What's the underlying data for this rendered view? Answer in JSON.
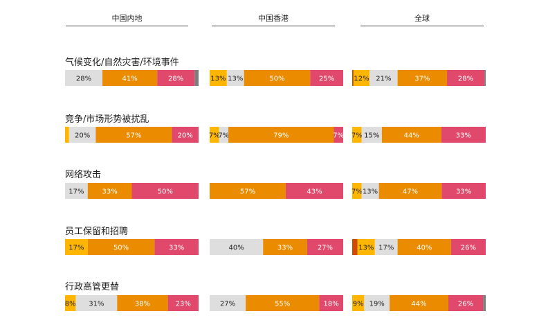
{
  "chart_data": {
    "type": "bar",
    "stacked": true,
    "orientation": "horizontal",
    "panels": [
      "中国内地",
      "中国香港",
      "全球"
    ],
    "colors": {
      "dark_orange": "#d04a02",
      "gold": "#ffb600",
      "light_gray": "#dedede",
      "orange": "#eb8c00",
      "rose": "#e0496b",
      "dark_gray": "#7d7d7d"
    },
    "categories": [
      "气候变化/自然灾害/环境事件",
      "竞争/市场形势被扰乱",
      "网络攻击",
      "员工保留和招聘",
      "行政高管更替"
    ],
    "rows": [
      {
        "label": "气候变化/自然灾害/环境事件",
        "panels": [
          [
            {
              "value": 28,
              "color": "light_gray",
              "label": "28%"
            },
            {
              "value": 41,
              "color": "orange",
              "label": "41%"
            },
            {
              "value": 28,
              "color": "rose",
              "label": "28%"
            },
            {
              "value": 3,
              "color": "dark_gray",
              "label": ""
            }
          ],
          [
            {
              "value": 13,
              "color": "gold",
              "label": "13%"
            },
            {
              "value": 13,
              "color": "light_gray",
              "label": "13%"
            },
            {
              "value": 50,
              "color": "orange",
              "label": "50%"
            },
            {
              "value": 25,
              "color": "rose",
              "label": "25%"
            }
          ],
          [
            {
              "value": 1,
              "color": "dark_orange",
              "label": ""
            },
            {
              "value": 12,
              "color": "gold",
              "label": "12%"
            },
            {
              "value": 21,
              "color": "light_gray",
              "label": "21%"
            },
            {
              "value": 37,
              "color": "orange",
              "label": "37%"
            },
            {
              "value": 28,
              "color": "rose",
              "label": "28%"
            },
            {
              "value": 1,
              "color": "dark_gray",
              "label": ""
            }
          ]
        ]
      },
      {
        "label": "竞争/市场形势被扰乱",
        "panels": [
          [
            {
              "value": 3,
              "color": "gold",
              "label": ""
            },
            {
              "value": 20,
              "color": "light_gray",
              "label": "20%"
            },
            {
              "value": 57,
              "color": "orange",
              "label": "57%"
            },
            {
              "value": 20,
              "color": "rose",
              "label": "20%"
            }
          ],
          [
            {
              "value": 7,
              "color": "gold",
              "label": "7%"
            },
            {
              "value": 7,
              "color": "light_gray",
              "label": "7%"
            },
            {
              "value": 79,
              "color": "orange",
              "label": "79%"
            },
            {
              "value": 7,
              "color": "rose",
              "label": "7%"
            }
          ],
          [
            {
              "value": 7,
              "color": "gold",
              "label": "7%"
            },
            {
              "value": 15,
              "color": "light_gray",
              "label": "15%"
            },
            {
              "value": 44,
              "color": "orange",
              "label": "44%"
            },
            {
              "value": 33,
              "color": "rose",
              "label": "33%"
            }
          ]
        ]
      },
      {
        "label": "网络攻击",
        "panels": [
          [
            {
              "value": 17,
              "color": "light_gray",
              "label": "17%"
            },
            {
              "value": 33,
              "color": "orange",
              "label": "33%"
            },
            {
              "value": 50,
              "color": "rose",
              "label": "50%"
            }
          ],
          [
            {
              "value": 57,
              "color": "orange",
              "label": "57%"
            },
            {
              "value": 43,
              "color": "rose",
              "label": "43%"
            }
          ],
          [
            {
              "value": 7,
              "color": "gold",
              "label": "7%"
            },
            {
              "value": 13,
              "color": "light_gray",
              "label": "13%"
            },
            {
              "value": 47,
              "color": "orange",
              "label": "47%"
            },
            {
              "value": 33,
              "color": "rose",
              "label": "33%"
            }
          ]
        ]
      },
      {
        "label": "员工保留和招聘",
        "panels": [
          [
            {
              "value": 17,
              "color": "gold",
              "label": "17%"
            },
            {
              "value": 50,
              "color": "orange",
              "label": "50%"
            },
            {
              "value": 33,
              "color": "rose",
              "label": "33%"
            }
          ],
          [
            {
              "value": 40,
              "color": "light_gray",
              "label": "40%"
            },
            {
              "value": 33,
              "color": "orange",
              "label": "33%"
            },
            {
              "value": 27,
              "color": "rose",
              "label": "27%"
            }
          ],
          [
            {
              "value": 4,
              "color": "dark_orange",
              "label": ""
            },
            {
              "value": 13,
              "color": "gold",
              "label": "13%"
            },
            {
              "value": 17,
              "color": "light_gray",
              "label": "17%"
            },
            {
              "value": 40,
              "color": "orange",
              "label": "40%"
            },
            {
              "value": 26,
              "color": "rose",
              "label": "26%"
            }
          ]
        ]
      },
      {
        "label": "行政高管更替",
        "panels": [
          [
            {
              "value": 8,
              "color": "gold",
              "label": "8%"
            },
            {
              "value": 31,
              "color": "light_gray",
              "label": "31%"
            },
            {
              "value": 38,
              "color": "orange",
              "label": "38%"
            },
            {
              "value": 23,
              "color": "rose",
              "label": "23%"
            }
          ],
          [
            {
              "value": 27,
              "color": "light_gray",
              "label": "27%"
            },
            {
              "value": 55,
              "color": "orange",
              "label": "55%"
            },
            {
              "value": 18,
              "color": "rose",
              "label": "18%"
            }
          ],
          [
            {
              "value": 9,
              "color": "gold",
              "label": "9%"
            },
            {
              "value": 19,
              "color": "light_gray",
              "label": "19%"
            },
            {
              "value": 44,
              "color": "orange",
              "label": "44%"
            },
            {
              "value": 26,
              "color": "rose",
              "label": "26%"
            },
            {
              "value": 2,
              "color": "dark_gray",
              "label": ""
            }
          ]
        ]
      }
    ]
  }
}
